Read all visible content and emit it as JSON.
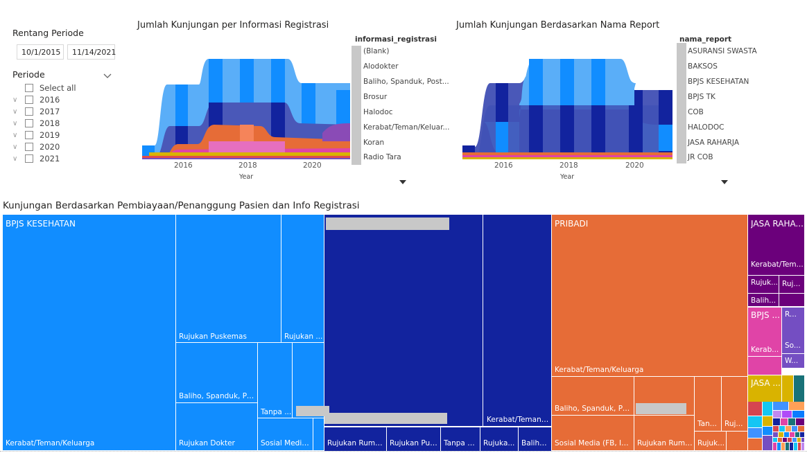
{
  "slicers": {
    "range_title": "Rentang Periode",
    "start_date": "10/1/2015",
    "end_date": "11/14/2021",
    "periode_title": "Periode",
    "items": [
      "Select all",
      "2016",
      "2017",
      "2018",
      "2019",
      "2020",
      "2021"
    ]
  },
  "chart_data": [
    {
      "type": "area",
      "title": "Jumlah Kunjungan per Informasi Registrasi",
      "xlabel": "Year",
      "x_ticks": [
        "2016",
        "2018",
        "2020"
      ],
      "legend_title": "informasi_registrasi",
      "legend": [
        "(Blank)",
        "Alodokter",
        "Baliho, Spanduk, Post...",
        "Brosur",
        "Halodoc",
        "Kerabat/Teman/Keluar...",
        "Koran",
        "Radio Tara"
      ]
    },
    {
      "type": "area",
      "title": "Jumlah Kunjungan Berdasarkan Nama Report",
      "xlabel": "Year",
      "x_ticks": [
        "2016",
        "2018",
        "2020"
      ],
      "legend_title": "nama_report",
      "legend": [
        "ASURANSI SWASTA",
        "BAKSOS",
        "BPJS KESEHATAN",
        "BPJS TK",
        "COB",
        "HALODOC",
        "JASA RAHARJA",
        "JR COB"
      ]
    },
    {
      "type": "treemap",
      "title": "Kunjungan Berdasarkan Pembiayaan/Penanggung Pasien dan Info Registrasi",
      "groups": [
        {
          "name": "BPJS KESEHATAN",
          "children": [
            "Kerabat/Teman/Keluarga",
            "Rujukan Puskemas",
            "Rujukan ...",
            "Baliho, Spanduk, Pos...",
            "Rujukan Dokter",
            "Tanpa ...",
            "Sosial Media..."
          ]
        },
        {
          "name": "",
          "children": [
            "Kerabat/Teman/...",
            "Rujukan Ruma...",
            "Rujukan Pus...",
            "Tanpa K...",
            "Rujuka...",
            "Baliho..."
          ]
        },
        {
          "name": "PRIBADI",
          "children": [
            "Kerabat/Teman/Keluarga",
            "Baliho, Spanduk, Pos...",
            "Sosial Media (FB, Inst...",
            "Rujukan Ruma...",
            "Tan...",
            "Ruj...",
            "Rujuk..."
          ]
        },
        {
          "name": "JASA RAHA...",
          "children": [
            "Kerabat/Tem...",
            "Rujuk...",
            "Ruj...",
            "Balih..."
          ]
        },
        {
          "name": "BPJS ...",
          "children": [
            "Kerab...",
            "R...",
            "So...",
            "W..."
          ]
        },
        {
          "name": "JASA ...",
          "children": []
        }
      ]
    }
  ]
}
